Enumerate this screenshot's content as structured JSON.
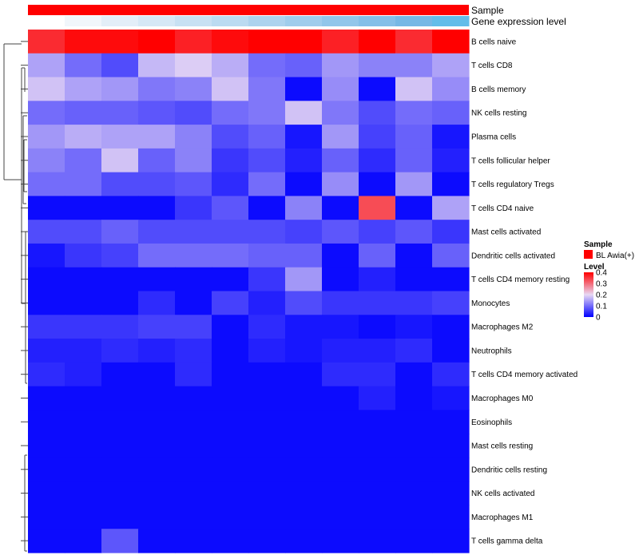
{
  "chart_data": {
    "type": "heatmap",
    "annotations": {
      "sample_label": "Sample",
      "expression_label": "Gene expression level",
      "sample_color": "#ff0000",
      "expression_colors": [
        "#ffffff",
        "#f1f6fb",
        "#e3eef8",
        "#d6e8f6",
        "#c8e1f3",
        "#bbdbf1",
        "#add3ee",
        "#9fcdec",
        "#91c6ea",
        "#84bfe8",
        "#76b8e5",
        "#63bde9"
      ]
    },
    "rows": [
      "B cells naive",
      "T cells CD8",
      "B cells memory",
      "NK cells resting",
      "Plasma cells",
      "T cells follicular helper",
      "T cells regulatory  Tregs",
      "T cells CD4 naive",
      "Mast cells activated",
      "Dendritic cells activated",
      "T cells CD4 memory resting",
      "Monocytes",
      "Macrophages M2",
      "Neutrophils",
      "T cells CD4 memory activated",
      "Macrophages M0",
      "Eosinophils",
      "Mast cells resting",
      "Dendritic cells resting",
      "NK cells activated",
      "Macrophages M1",
      "T cells gamma delta"
    ],
    "columns": 12,
    "values": [
      [
        0.36,
        0.39,
        0.39,
        0.41,
        0.37,
        0.39,
        0.42,
        0.42,
        0.37,
        0.41,
        0.36,
        0.42
      ],
      [
        0.15,
        0.1,
        0.07,
        0.17,
        0.19,
        0.16,
        0.1,
        0.09,
        0.14,
        0.12,
        0.12,
        0.15
      ],
      [
        0.18,
        0.15,
        0.14,
        0.11,
        0.12,
        0.18,
        0.11,
        0.01,
        0.13,
        0.01,
        0.18,
        0.13
      ],
      [
        0.1,
        0.09,
        0.09,
        0.08,
        0.07,
        0.1,
        0.11,
        0.18,
        0.11,
        0.07,
        0.1,
        0.09
      ],
      [
        0.14,
        0.16,
        0.15,
        0.15,
        0.12,
        0.07,
        0.09,
        0.02,
        0.14,
        0.06,
        0.09,
        0.02
      ],
      [
        0.12,
        0.1,
        0.18,
        0.09,
        0.12,
        0.05,
        0.07,
        0.03,
        0.09,
        0.04,
        0.09,
        0.03
      ],
      [
        0.1,
        0.1,
        0.07,
        0.07,
        0.08,
        0.04,
        0.1,
        0.01,
        0.13,
        0.01,
        0.14,
        0.01
      ],
      [
        0.01,
        0.01,
        0.01,
        0.01,
        0.05,
        0.08,
        0.01,
        0.12,
        0.01,
        0.33,
        0.01,
        0.15
      ],
      [
        0.07,
        0.07,
        0.09,
        0.07,
        0.07,
        0.07,
        0.07,
        0.06,
        0.08,
        0.06,
        0.08,
        0.05
      ],
      [
        0.02,
        0.05,
        0.06,
        0.1,
        0.1,
        0.1,
        0.09,
        0.09,
        0.01,
        0.09,
        0.01,
        0.09
      ],
      [
        0.01,
        0.01,
        0.01,
        0.01,
        0.01,
        0.01,
        0.05,
        0.14,
        0.01,
        0.03,
        0.01,
        0.01
      ],
      [
        0.01,
        0.01,
        0.01,
        0.04,
        0.01,
        0.06,
        0.03,
        0.07,
        0.05,
        0.05,
        0.05,
        0.06
      ],
      [
        0.05,
        0.05,
        0.05,
        0.06,
        0.06,
        0.01,
        0.04,
        0.02,
        0.02,
        0.01,
        0.02,
        0.01
      ],
      [
        0.03,
        0.03,
        0.04,
        0.03,
        0.04,
        0.01,
        0.03,
        0.02,
        0.03,
        0.03,
        0.04,
        0.01
      ],
      [
        0.04,
        0.03,
        0.01,
        0.01,
        0.04,
        0.01,
        0.01,
        0.01,
        0.04,
        0.04,
        0.01,
        0.04
      ],
      [
        0.01,
        0.01,
        0.01,
        0.01,
        0.01,
        0.01,
        0.01,
        0.01,
        0.01,
        0.03,
        0.01,
        0.02
      ],
      [
        0.01,
        0.01,
        0.01,
        0.01,
        0.01,
        0.01,
        0.01,
        0.01,
        0.01,
        0.01,
        0.01,
        0.01
      ],
      [
        0.01,
        0.01,
        0.01,
        0.01,
        0.01,
        0.01,
        0.01,
        0.01,
        0.01,
        0.01,
        0.01,
        0.01
      ],
      [
        0.01,
        0.01,
        0.01,
        0.01,
        0.01,
        0.01,
        0.01,
        0.01,
        0.01,
        0.01,
        0.01,
        0.01
      ],
      [
        0.01,
        0.01,
        0.01,
        0.01,
        0.01,
        0.01,
        0.01,
        0.01,
        0.01,
        0.01,
        0.01,
        0.01
      ],
      [
        0.01,
        0.01,
        0.01,
        0.01,
        0.01,
        0.01,
        0.01,
        0.01,
        0.01,
        0.01,
        0.01,
        0.01
      ],
      [
        0.01,
        0.01,
        0.08,
        0.01,
        0.01,
        0.01,
        0.01,
        0.01,
        0.01,
        0.01,
        0.01,
        0.01
      ]
    ],
    "color_scale": {
      "domain": [
        0,
        0.2,
        0.4
      ],
      "colors": [
        "#0000ff",
        "#e8d8f4",
        "#ff0000"
      ]
    },
    "legend": {
      "sample_title": "Sample",
      "sample_entry": "BL Awia(+)",
      "level_title": "Level",
      "ticks": [
        "0.4",
        "0.3",
        "0.2",
        "0.1",
        "0"
      ]
    },
    "dendrogram": "row clustering (left)"
  }
}
